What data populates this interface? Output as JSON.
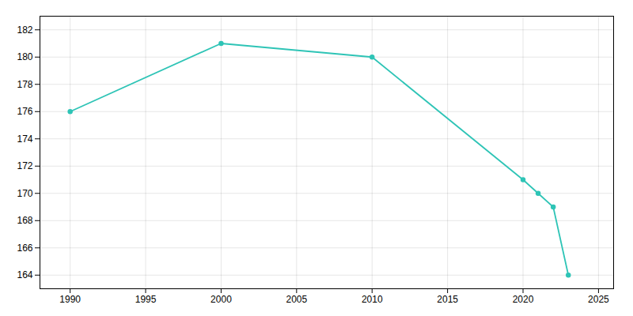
{
  "chart_data": {
    "type": "line",
    "x": [
      1990,
      2000,
      2010,
      2020,
      2021,
      2022,
      2023
    ],
    "values": [
      176,
      181,
      180,
      171,
      170,
      169,
      164
    ],
    "color": "#2EC4B6",
    "marker": "circle",
    "xlim": [
      1988,
      2026
    ],
    "ylim": [
      163,
      183
    ],
    "xticks": [
      1990,
      1995,
      2000,
      2005,
      2010,
      2015,
      2020,
      2025
    ],
    "yticks": [
      164,
      166,
      168,
      170,
      172,
      174,
      176,
      178,
      180,
      182
    ],
    "grid": true
  }
}
